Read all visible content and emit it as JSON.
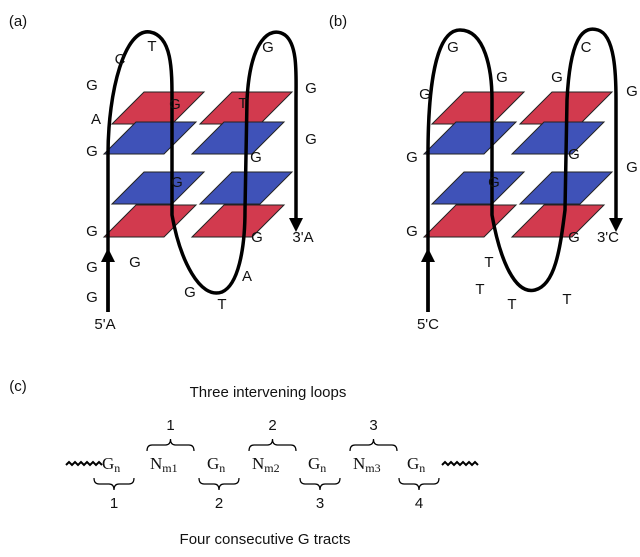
{
  "panels": [
    {
      "label": "(a)",
      "letters": [
        "C",
        "T",
        "G",
        "G",
        "A",
        "G",
        "T",
        "G",
        "G",
        "G",
        "G",
        "G",
        "G",
        "G",
        "G",
        "G",
        "G",
        "G",
        "A",
        "T"
      ],
      "five_end": "5'A",
      "three_end": "3'A"
    },
    {
      "label": "(b)",
      "letters": [
        "G",
        "C",
        "G",
        "G",
        "G",
        "G",
        "G",
        "G",
        "G",
        "G",
        "G",
        "G",
        "T",
        "T",
        "T",
        "T"
      ],
      "five_end": "5'C",
      "three_end": "3'C"
    }
  ],
  "panel_c": {
    "label": "(c)",
    "top_caption": "Three intervening loops",
    "loop_numbers": [
      "1",
      "2",
      "3"
    ],
    "sequence": [
      {
        "base": "G",
        "sub": "n"
      },
      {
        "base": "N",
        "sub": "m1"
      },
      {
        "base": "G",
        "sub": "n"
      },
      {
        "base": "N",
        "sub": "m2"
      },
      {
        "base": "G",
        "sub": "n"
      },
      {
        "base": "N",
        "sub": "m3"
      },
      {
        "base": "G",
        "sub": "n"
      }
    ],
    "tract_numbers": [
      "1",
      "2",
      "3",
      "4"
    ],
    "bottom_caption": "Four consecutive G tracts"
  }
}
